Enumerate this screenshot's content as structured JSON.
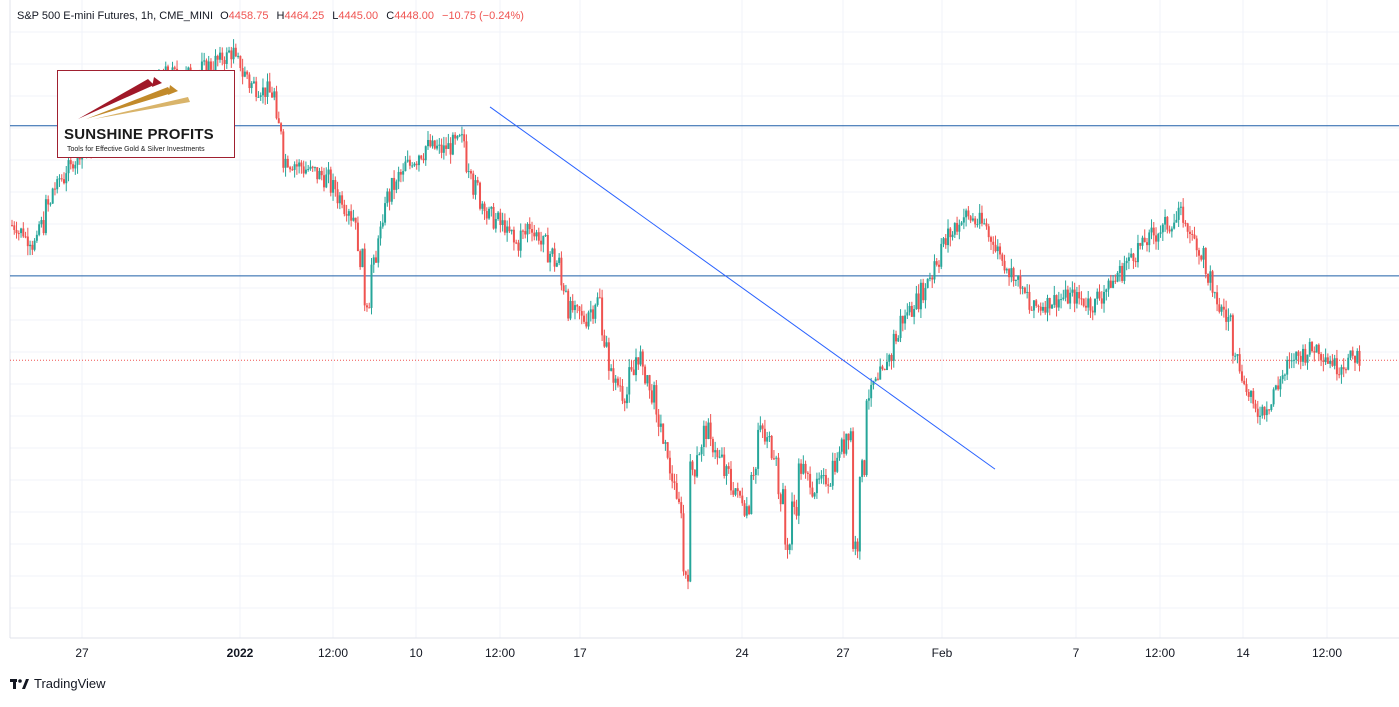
{
  "header": {
    "symbol": "S&P 500 E-mini Futures, 1h, CME_MINI",
    "o_label": "O",
    "o_value": "4458.75",
    "h_label": "H",
    "h_value": "4464.25",
    "l_label": "L",
    "l_value": "4445.00",
    "c_label": "C",
    "c_value": "4448.00",
    "change": "−10.75 (−0.24%)"
  },
  "logo": {
    "name": "SUNSHINE PROFITS",
    "tagline": "Tools for Effective Gold & Silver Investments"
  },
  "footer": {
    "brand": "TradingView"
  },
  "colors": {
    "up": "#26a69a",
    "down": "#ef5350",
    "trendline": "#2962ff",
    "hline": "#1e5fa8",
    "price_line": "#ef5350",
    "grid": "#f0f3fa"
  },
  "chart_data": {
    "type": "candlestick",
    "x_tick_labels": [
      "27",
      "2022",
      "12:00",
      "10",
      "12:00",
      "17",
      "24",
      "27",
      "Feb",
      "7",
      "12:00",
      "14",
      "12:00"
    ],
    "horizontal_lines": [
      4573,
      4493
    ],
    "current_price": 4448,
    "trendline": {
      "from": {
        "x": "Jan 13",
        "y": 4583
      },
      "to": {
        "x": "Jan 31",
        "y": 4390
      }
    },
    "ylim": [
      4300,
      4640
    ],
    "grid": true,
    "anchor_prices": [
      [
        0,
        4520
      ],
      [
        3,
        4510
      ],
      [
        6,
        4540
      ],
      [
        10,
        4560
      ],
      [
        14,
        4570
      ],
      [
        18,
        4580
      ],
      [
        22,
        4600
      ],
      [
        26,
        4600
      ],
      [
        29,
        4605
      ],
      [
        32,
        4612
      ],
      [
        35,
        4595
      ],
      [
        38,
        4590
      ],
      [
        40,
        4555
      ],
      [
        43,
        4550
      ],
      [
        46,
        4545
      ],
      [
        50,
        4525
      ],
      [
        52,
        4480
      ],
      [
        55,
        4535
      ],
      [
        58,
        4552
      ],
      [
        61,
        4562
      ],
      [
        63,
        4560
      ],
      [
        66,
        4565
      ],
      [
        68,
        4540
      ],
      [
        70,
        4525
      ],
      [
        72,
        4520
      ],
      [
        74,
        4510
      ],
      [
        76,
        4520
      ],
      [
        78,
        4510
      ],
      [
        80,
        4500
      ],
      [
        82,
        4475
      ],
      [
        84,
        4470
      ],
      [
        86,
        4480
      ],
      [
        88,
        4440
      ],
      [
        90,
        4430
      ],
      [
        92,
        4450
      ],
      [
        94,
        4430
      ],
      [
        96,
        4400
      ],
      [
        98,
        4370
      ],
      [
        99,
        4335
      ],
      [
        100,
        4390
      ],
      [
        102,
        4410
      ],
      [
        104,
        4395
      ],
      [
        106,
        4380
      ],
      [
        108,
        4370
      ],
      [
        110,
        4410
      ],
      [
        112,
        4400
      ],
      [
        114,
        4350
      ],
      [
        116,
        4390
      ],
      [
        118,
        4380
      ],
      [
        120,
        4385
      ],
      [
        123,
        4410
      ],
      [
        124,
        4350
      ],
      [
        126,
        4430
      ],
      [
        128,
        4440
      ],
      [
        131,
        4470
      ],
      [
        134,
        4485
      ],
      [
        137,
        4510
      ],
      [
        140,
        4525
      ],
      [
        143,
        4520
      ],
      [
        146,
        4500
      ],
      [
        148,
        4490
      ],
      [
        150,
        4475
      ],
      [
        153,
        4480
      ],
      [
        156,
        4482
      ],
      [
        159,
        4478
      ],
      [
        162,
        4490
      ],
      [
        165,
        4505
      ],
      [
        168,
        4515
      ],
      [
        172,
        4525
      ],
      [
        175,
        4505
      ],
      [
        177,
        4480
      ],
      [
        179,
        4470
      ],
      [
        181,
        4440
      ],
      [
        183,
        4420
      ],
      [
        185,
        4425
      ],
      [
        187,
        4440
      ],
      [
        189,
        4450
      ],
      [
        192,
        4455
      ],
      [
        195,
        4445
      ],
      [
        198,
        4450
      ]
    ]
  }
}
